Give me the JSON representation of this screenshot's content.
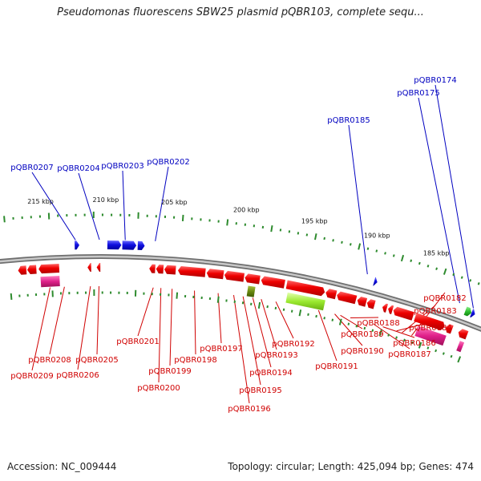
{
  "header": {
    "title": "Pseudomonas fluorescens SBW25 plasmid pQBR103, complete sequ..."
  },
  "footer": {
    "accession": "Accession: NC_009444",
    "summary": "Topology: circular; Length: 425,094 bp; Genes: 474"
  },
  "colors": {
    "backbone": "#9a9a9a",
    "tick": "#2e8b2e",
    "red_gene": "#e00000",
    "blue_gene": "#1010e0",
    "pink_feature": "#e0208a",
    "green_feature": "#9bea30",
    "olive_feature": "#6a8a10",
    "bright_green_feature": "#30c030",
    "red_label": "#d00000",
    "blue_label": "#0000c0"
  },
  "kbp_labels": [
    {
      "text": "215 kbp",
      "pos": 0.057
    },
    {
      "text": "210 kbp",
      "pos": 0.191
    },
    {
      "text": "205 kbp",
      "pos": 0.332
    },
    {
      "text": "200 kbp",
      "pos": 0.481
    },
    {
      "text": "195 kbp",
      "pos": 0.623
    },
    {
      "text": "190 kbp",
      "pos": 0.755
    },
    {
      "text": "185 kbp",
      "pos": 0.882
    }
  ],
  "outer_genes": [
    {
      "label": "pQBR0207",
      "pos": 0.127
    },
    {
      "label": "pQBR0204",
      "pos": 0.178
    },
    {
      "label": "pQBR0203",
      "pos": 0.233
    },
    {
      "label": "pQBR0202",
      "pos": 0.297
    },
    {
      "label": "pQBR0185",
      "pos": 0.755
    },
    {
      "label": "pQBR0175",
      "pos": 0.961
    },
    {
      "label": "pQBR0174",
      "pos": 0.992
    }
  ],
  "inner_genes": [
    {
      "label": "pQBR0209",
      "pos": 0.068
    },
    {
      "label": "pQBR0208",
      "pos": 0.1
    },
    {
      "label": "pQBR0206",
      "pos": 0.158
    },
    {
      "label": "pQBR0205",
      "pos": 0.177
    },
    {
      "label": "pQBR0201",
      "pos": 0.298
    },
    {
      "label": "pQBR0200",
      "pos": 0.315
    },
    {
      "label": "pQBR0199",
      "pos": 0.34
    },
    {
      "label": "pQBR0198",
      "pos": 0.39
    },
    {
      "label": "pQBR0197",
      "pos": 0.443
    },
    {
      "label": "pQBR0196",
      "pos": 0.478
    },
    {
      "label": "pQBR0195",
      "pos": 0.499
    },
    {
      "label": "pQBR0194",
      "pos": 0.521
    },
    {
      "label": "pQBR0193",
      "pos": 0.54
    },
    {
      "label": "pQBR0192",
      "pos": 0.573
    },
    {
      "label": "pQBR0191",
      "pos": 0.67
    },
    {
      "label": "pQBR0190",
      "pos": 0.707
    },
    {
      "label": "pQBR0189",
      "pos": 0.72
    },
    {
      "label": "pQBR0188",
      "pos": 0.743
    },
    {
      "label": "pQBR0187",
      "pos": 0.797
    },
    {
      "label": "pQBR0186",
      "pos": 0.818
    },
    {
      "label": "pQBR0184",
      "pos": 0.85
    },
    {
      "label": "pQBR0183",
      "pos": 0.863
    },
    {
      "label": "pQBR0182",
      "pos": 0.885
    }
  ],
  "features": [
    {
      "track": "inner",
      "color": "red",
      "start": 0.0,
      "end": 0.018,
      "dir": "rev"
    },
    {
      "track": "inner",
      "color": "red",
      "start": 0.02,
      "end": 0.04,
      "dir": "rev"
    },
    {
      "track": "inner",
      "color": "red",
      "start": 0.045,
      "end": 0.09,
      "dir": "rev"
    },
    {
      "track": "inner",
      "color": "red",
      "start": 0.152,
      "end": 0.16,
      "dir": "rev"
    },
    {
      "track": "inner",
      "color": "red",
      "start": 0.172,
      "end": 0.18,
      "dir": "rev"
    },
    {
      "track": "inner",
      "color": "red",
      "start": 0.287,
      "end": 0.3,
      "dir": "rev"
    },
    {
      "track": "inner",
      "color": "red",
      "start": 0.302,
      "end": 0.318,
      "dir": "rev"
    },
    {
      "track": "inner",
      "color": "red",
      "start": 0.32,
      "end": 0.345,
      "dir": "rev"
    },
    {
      "track": "inner",
      "color": "red",
      "start": 0.35,
      "end": 0.41,
      "dir": "rev"
    },
    {
      "track": "inner",
      "color": "red",
      "start": 0.413,
      "end": 0.45,
      "dir": "rev"
    },
    {
      "track": "inner",
      "color": "red",
      "start": 0.452,
      "end": 0.495,
      "dir": "rev"
    },
    {
      "track": "inner",
      "color": "red",
      "start": 0.497,
      "end": 0.53,
      "dir": "rev"
    },
    {
      "track": "inner",
      "color": "red",
      "start": 0.533,
      "end": 0.585,
      "dir": "rev"
    },
    {
      "track": "inner",
      "color": "red",
      "start": 0.59,
      "end": 0.675,
      "dir": "fwd"
    },
    {
      "track": "inner",
      "color": "red",
      "start": 0.677,
      "end": 0.7,
      "dir": "rev"
    },
    {
      "track": "inner",
      "color": "red",
      "start": 0.702,
      "end": 0.745,
      "dir": "rev"
    },
    {
      "track": "inner",
      "color": "red",
      "start": 0.748,
      "end": 0.768,
      "dir": "rev"
    },
    {
      "track": "inner",
      "color": "red",
      "start": 0.77,
      "end": 0.787,
      "dir": "rev"
    },
    {
      "track": "inner",
      "color": "red",
      "start": 0.805,
      "end": 0.815,
      "dir": "rev"
    },
    {
      "track": "inner",
      "color": "red",
      "start": 0.818,
      "end": 0.828,
      "dir": "rev"
    },
    {
      "track": "inner",
      "color": "red",
      "start": 0.83,
      "end": 0.875,
      "dir": "rev"
    },
    {
      "track": "inner",
      "color": "red",
      "start": 0.88,
      "end": 0.948,
      "dir": "fwd"
    },
    {
      "track": "inner",
      "color": "red",
      "start": 0.95,
      "end": 0.965,
      "dir": "rev"
    },
    {
      "track": "inner",
      "color": "red",
      "start": 0.98,
      "end": 1.0,
      "dir": "rev"
    },
    {
      "track": "outer",
      "color": "blue",
      "start": 0.125,
      "end": 0.135,
      "dir": "fwd"
    },
    {
      "track": "outer",
      "color": "blue",
      "start": 0.195,
      "end": 0.225,
      "dir": "fwd"
    },
    {
      "track": "outer",
      "color": "blue",
      "start": 0.227,
      "end": 0.257,
      "dir": "fwd"
    },
    {
      "track": "outer",
      "color": "blue",
      "start": 0.26,
      "end": 0.275,
      "dir": "fwd"
    },
    {
      "track": "outer",
      "color": "blue",
      "start": 0.773,
      "end": 0.78,
      "dir": "fwd"
    },
    {
      "track": "outer",
      "color": "blue",
      "start": 0.992,
      "end": 1.0,
      "dir": "fwd"
    },
    {
      "track": "outer",
      "color": "bright_green",
      "start": 0.978,
      "end": 0.992,
      "dir": "fwd"
    },
    {
      "track": "feature",
      "color": "pink",
      "start": 0.048,
      "end": 0.09
    },
    {
      "track": "feature",
      "color": "olive",
      "start": 0.507,
      "end": 0.523
    },
    {
      "track": "feature",
      "color": "green",
      "start": 0.595,
      "end": 0.68
    },
    {
      "track": "feature",
      "color": "pink",
      "start": 0.892,
      "end": 0.958
    },
    {
      "track": "feature",
      "color": "pink",
      "start": 0.99,
      "end": 1.0
    }
  ]
}
